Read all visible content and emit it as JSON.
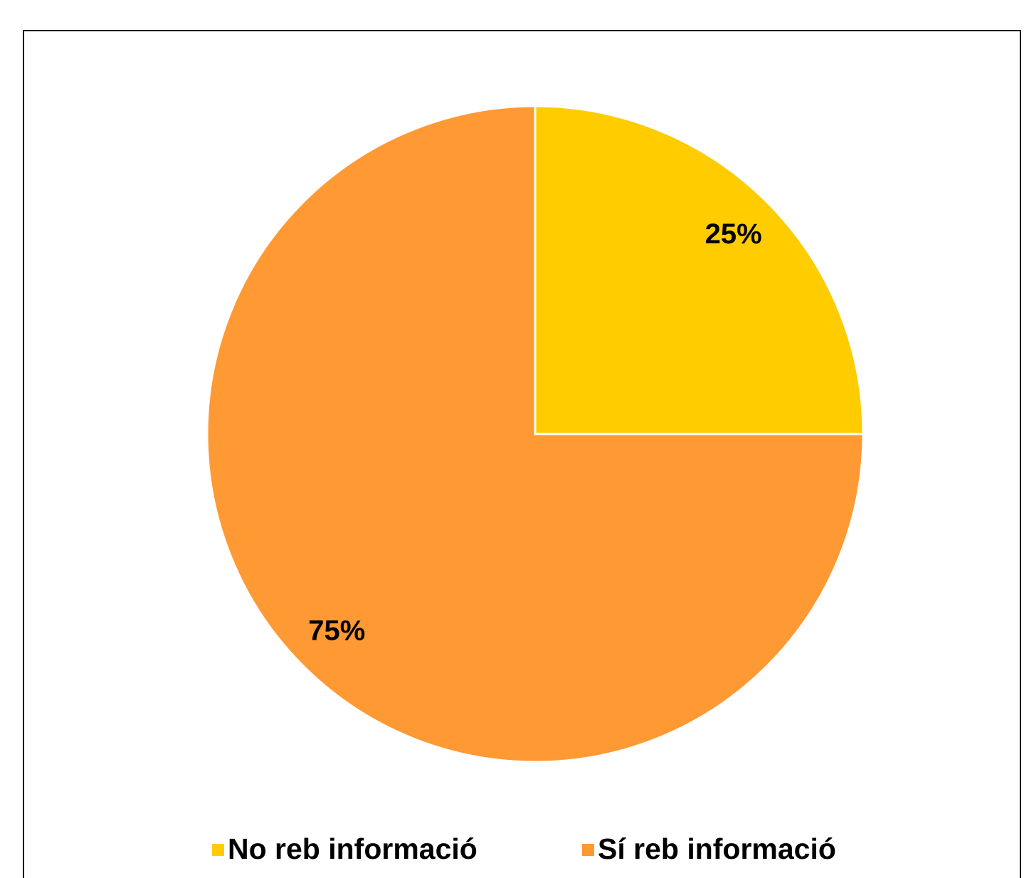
{
  "chart_data": {
    "type": "pie",
    "categories": [
      "No reb informació",
      "Sí reb informació"
    ],
    "values": [
      25,
      75
    ],
    "value_labels": [
      "25%",
      "75%"
    ],
    "colors": [
      "#FFCC00",
      "#FF9933"
    ],
    "legend": "bottom"
  }
}
